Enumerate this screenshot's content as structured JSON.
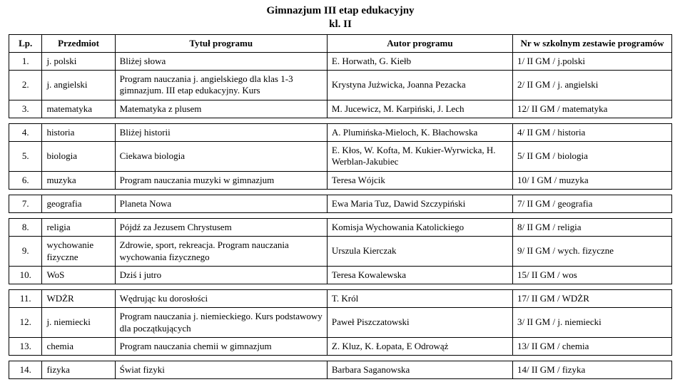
{
  "title_line1": "Gimnazjum III etap edukacyjny",
  "title_line2": "kl. II",
  "header": {
    "lp": "Lp.",
    "subject": "Przedmiot",
    "program": "Tytuł programu",
    "author": "Autor programu",
    "number": "Nr w szkolnym zestawie programów"
  },
  "rows": [
    {
      "lp": "1.",
      "subject": "j. polski",
      "program": "Bliżej słowa",
      "author": "E. Horwath, G. Kiełb",
      "number": "1/ II GM / j.polski"
    },
    {
      "lp": "2.",
      "subject": "j. angielski",
      "program": "Program nauczania j. angielskiego dla klas 1-3 gimnazjum. III etap edukacyjny. Kurs",
      "author": "Krystyna Jużwicka, Joanna Pezacka",
      "number": "2/ II GM / j. angielski"
    },
    {
      "lp": "3.",
      "subject": "matematyka",
      "program": "Matematyka z plusem",
      "author": "M. Jucewicz, M. Karpiński, J. Lech",
      "number": "12/ II GM / matematyka"
    },
    {
      "gap": true
    },
    {
      "lp": "4.",
      "subject": "historia",
      "program": "Bliżej historii",
      "author": "A. Plumińska-Mieloch, K. Błachowska",
      "number": "4/ II GM / historia"
    },
    {
      "lp": "5.",
      "subject": "biologia",
      "program": "Ciekawa biologia",
      "author": "E. Kłos, W. Kofta, M. Kukier-Wyrwicka, H. Werblan-Jakubiec",
      "number": "5/ II GM / biologia"
    },
    {
      "lp": "6.",
      "subject": "muzyka",
      "program": "Program nauczania muzyki w gimnazjum",
      "author": "Teresa Wójcik",
      "number": "10/ I GM / muzyka"
    },
    {
      "gap": true
    },
    {
      "lp": "7.",
      "subject": "geografia",
      "program": "Planeta Nowa",
      "author": "Ewa Maria Tuz, Dawid Szczypiński",
      "number": "7/ II GM / geografia"
    },
    {
      "gap": true
    },
    {
      "lp": "8.",
      "subject": "religia",
      "program": "Pójdź za Jezusem Chrystusem",
      "author": "Komisja Wychowania Katolickiego",
      "number": "8/ II GM / religia"
    },
    {
      "lp": "9.",
      "subject": "wychowanie fizyczne",
      "program": "Zdrowie, sport, rekreacja. Program nauczania wychowania fizycznego",
      "author": "Urszula Kierczak",
      "number": "9/ II GM / wych. fizyczne"
    },
    {
      "lp": "10.",
      "subject": "WoS",
      "program": "Dziś i jutro",
      "author": "Teresa Kowalewska",
      "number": "15/ II GM / wos"
    },
    {
      "gap": true
    },
    {
      "lp": "11.",
      "subject": "WDŻR",
      "program": "Wędrując ku dorosłości",
      "author": "T. Król",
      "number": "17/ II GM / WDŻR"
    },
    {
      "lp": "12.",
      "subject": "j. niemiecki",
      "program": "Program nauczania j. niemieckiego. Kurs podstawowy dla początkujących",
      "author": "Paweł Piszczatowski",
      "number": "3/ II GM / j. niemiecki"
    },
    {
      "lp": "13.",
      "subject": "chemia",
      "program": "Program nauczania chemii w gimnazjum",
      "author": "Z. Kluz, K. Łopata, E Odrowąż",
      "number": "13/ II GM / chemia"
    },
    {
      "gap": true
    },
    {
      "lp": "14.",
      "subject": "fizyka",
      "program": "Świat fizyki",
      "author": "Barbara Saganowska",
      "number": "14/ II GM / fizyka"
    }
  ],
  "colors": {
    "text": "#000000",
    "border": "#000000",
    "background": "#ffffff"
  },
  "typography": {
    "family": "Times New Roman",
    "body_pt": 13,
    "title_pt": 15,
    "title_weight": "bold"
  }
}
